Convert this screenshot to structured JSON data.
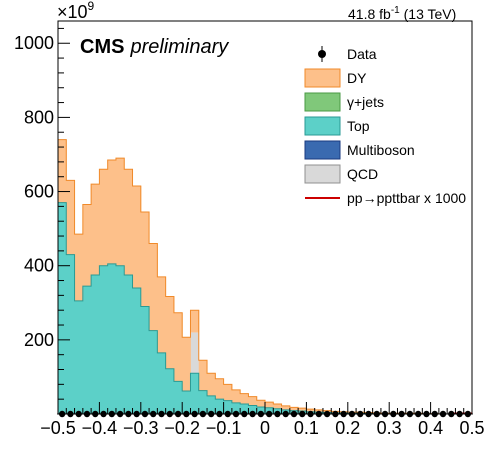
{
  "chart_data": {
    "type": "bar",
    "stacked": true,
    "title": "",
    "xlabel": "",
    "ylabel": "",
    "xlim": [
      -0.5,
      0.5
    ],
    "ylim": [
      0,
      1060
    ],
    "y_multiplier_label": "×10",
    "y_multiplier_exponent": "9",
    "cms_label": "CMS",
    "cms_sublabel": "preliminary",
    "lumi_label": "41.8 fb",
    "lumi_exponent": "-1",
    "lumi_suffix": " (13 TeV)",
    "x_ticks": [
      -0.5,
      -0.4,
      -0.3,
      -0.2,
      -0.1,
      0,
      0.1,
      0.2,
      0.3,
      0.4,
      0.5
    ],
    "x_tick_labels": [
      "−0.5",
      "−0.4",
      "−0.3",
      "−0.2",
      "−0.1",
      "0",
      "0.1",
      "0.2",
      "0.3",
      "0.4",
      "0.5"
    ],
    "y_ticks": [
      200,
      400,
      600,
      800,
      1000
    ],
    "y_tick_labels": [
      "200",
      "400",
      "600",
      "800",
      "1000"
    ],
    "bin_width": 0.02,
    "bin_edges_start": -0.5,
    "series": [
      {
        "name": "Top",
        "color": "#5cd0c8",
        "values": [
          570,
          430,
          305,
          345,
          375,
          400,
          405,
          400,
          375,
          340,
          290,
          225,
          165,
          122,
          88,
          62,
          110,
          63,
          49,
          40,
          36,
          30,
          27,
          23,
          19,
          17,
          14,
          11,
          9,
          8,
          6,
          5,
          4,
          3,
          3,
          2,
          2,
          2,
          1,
          1,
          1,
          1,
          1,
          1,
          0,
          0,
          0,
          0,
          0,
          0
        ]
      },
      {
        "name": "QCD",
        "color": "#d9d9d9",
        "values": [
          0,
          0,
          0,
          0,
          0,
          0,
          0,
          0,
          0,
          0,
          0,
          0,
          0,
          0,
          0,
          0,
          110,
          0,
          0,
          0,
          0,
          0,
          0,
          0,
          0,
          0,
          0,
          0,
          0,
          0,
          0,
          0,
          0,
          0,
          0,
          0,
          0,
          0,
          0,
          0,
          0,
          0,
          0,
          0,
          0,
          0,
          0,
          0,
          0,
          0
        ]
      },
      {
        "name": "DY",
        "color": "#fdc08a",
        "values": [
          170,
          200,
          180,
          220,
          245,
          260,
          280,
          290,
          285,
          275,
          255,
          235,
          205,
          195,
          185,
          145,
          60,
          82,
          61,
          55,
          44,
          35,
          28,
          24,
          18,
          15,
          13,
          11,
          9,
          8,
          7,
          6,
          5,
          4,
          3,
          3,
          3,
          2,
          2,
          1,
          1,
          1,
          1,
          1,
          1,
          1,
          0,
          0,
          0,
          0
        ]
      }
    ],
    "legend": [
      {
        "label": "Data",
        "style": "marker",
        "color": "#000000"
      },
      {
        "label": "DY",
        "style": "box",
        "color": "#fdc08a",
        "edge": "#f08a2a"
      },
      {
        "label": "γ+jets",
        "style": "box",
        "color": "#80c87a",
        "edge": "#4a9a44"
      },
      {
        "label": "Top",
        "style": "box",
        "color": "#5cd0c8",
        "edge": "#2a9a94"
      },
      {
        "label": "Multiboson",
        "style": "box",
        "color": "#3a6ab0",
        "edge": "#1a3a80"
      },
      {
        "label": "QCD",
        "style": "box",
        "color": "#d9d9d9",
        "edge": "#909090"
      },
      {
        "label": "pp→ppttbar x 1000",
        "style": "line",
        "color": "#cc0000"
      }
    ],
    "data_points_value": 0,
    "signal_line_color": "#cc0000",
    "dy_edge_color": "#f08a2a",
    "top_edge_color": "#2a9a94"
  }
}
